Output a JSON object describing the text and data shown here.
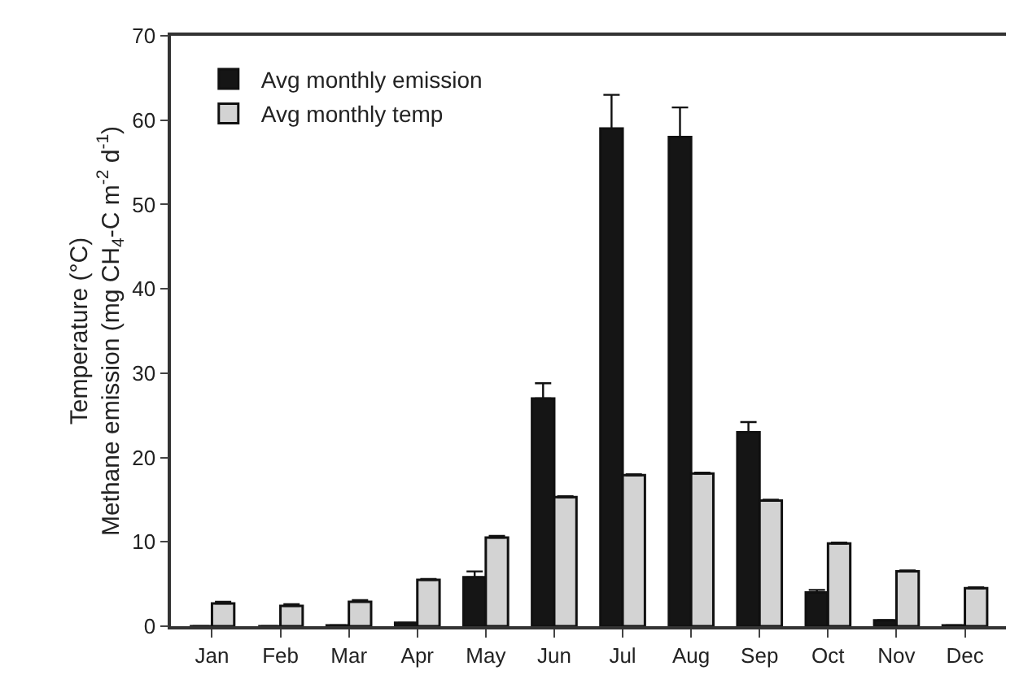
{
  "chart_data": {
    "type": "bar",
    "ylabel": "Temperature (°C)\nMethane emission (mg CH$_{4}$-C m$^{-2}$ d$^{-1}$)",
    "categories": [
      "Jan",
      "Feb",
      "Mar",
      "Apr",
      "May",
      "Jun",
      "Jul",
      "Aug",
      "Sep",
      "Oct",
      "Nov",
      "Dec"
    ],
    "series": [
      {
        "name": "Avg monthly emission",
        "color": "#151515",
        "values": [
          0,
          0,
          0.1,
          0.4,
          5.8,
          27,
          59,
          58,
          23,
          4,
          0.7,
          0.1
        ],
        "errors": [
          null,
          null,
          null,
          null,
          0.7,
          1.8,
          4,
          3.5,
          1.2,
          0.3,
          null,
          null
        ]
      },
      {
        "name": "Avg monthly temp",
        "color": "#d3d3d3",
        "values": [
          2.7,
          2.4,
          2.9,
          5.5,
          10.5,
          15.3,
          17.9,
          18.1,
          14.9,
          9.8,
          6.5,
          4.5
        ],
        "errors": [
          0.2,
          0.2,
          0.2,
          0.1,
          0.2,
          0.1,
          0.1,
          0.1,
          0.1,
          0.1,
          0.1,
          0.1
        ]
      }
    ],
    "ylim": [
      0,
      70
    ],
    "yticks": [
      0,
      10,
      20,
      30,
      40,
      50,
      60,
      70
    ],
    "grid": false,
    "legend": "top left"
  }
}
